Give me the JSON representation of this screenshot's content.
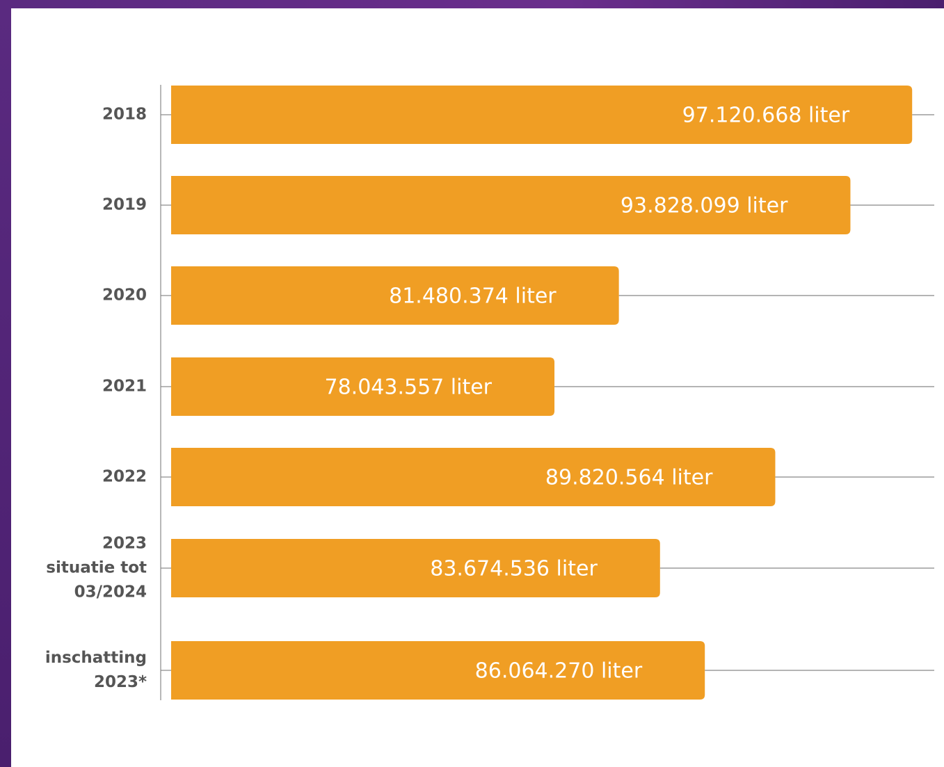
{
  "chart_data": {
    "type": "bar",
    "orientation": "horizontal",
    "categories": [
      "2018",
      "2019",
      "2020",
      "2021",
      "2022",
      "2023\nsituatie tot\n03/2024",
      "inschatting\n2023*"
    ],
    "values": [
      97120668,
      93828099,
      81480374,
      78043557,
      89820564,
      83674536,
      86064270
    ],
    "value_labels": [
      "97.120.668 liter",
      "93.828.099 liter",
      "81.480.374 liter",
      "78.043.557 liter",
      "89.820.564 liter",
      "83.674.536 liter",
      "86.064.270 liter"
    ],
    "color": "#f09e24",
    "xlim": [
      57600000,
      98300000
    ]
  }
}
